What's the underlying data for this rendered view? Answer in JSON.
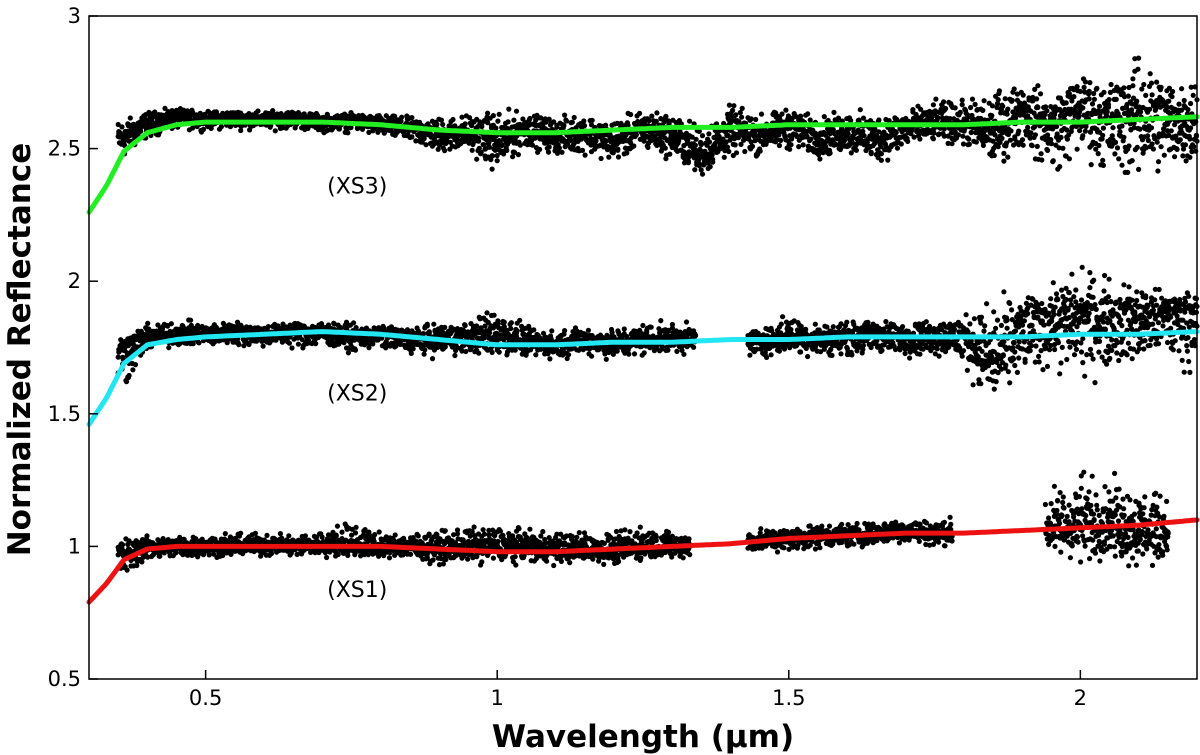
{
  "chart_data": {
    "type": "scatter",
    "title": "",
    "xlabel": "Wavelength (µm)",
    "ylabel": "Normalized Reflectance",
    "xlim": [
      0.3,
      2.2
    ],
    "ylim": [
      0.5,
      3.0
    ],
    "xticks": [
      0.5,
      1.0,
      1.5,
      2.0
    ],
    "xtick_labels": [
      "0.5",
      "1",
      "1.5",
      "2"
    ],
    "yticks": [
      0.5,
      1.0,
      1.5,
      2.0,
      2.5,
      3.0
    ],
    "ytick_labels": [
      "0.5",
      "1",
      "1.5",
      "2",
      "2.5",
      "3"
    ],
    "grid": false,
    "legend": "none",
    "annotations": [
      {
        "text": "(XS3)",
        "x": 0.76,
        "y": 2.33
      },
      {
        "text": "(XS2)",
        "x": 0.76,
        "y": 1.55
      },
      {
        "text": "(XS1)",
        "x": 0.76,
        "y": 0.81
      }
    ],
    "series": [
      {
        "label": "XS3",
        "line_color": "#22ee22",
        "marker_color": "#000000",
        "line": {
          "x": [
            0.3,
            0.33,
            0.36,
            0.4,
            0.45,
            0.5,
            0.6,
            0.7,
            0.8,
            0.9,
            1.0,
            1.1,
            1.2,
            1.3,
            1.4,
            1.5,
            1.6,
            1.7,
            1.8,
            1.9,
            2.0,
            2.1,
            2.2
          ],
          "y": [
            2.26,
            2.36,
            2.49,
            2.56,
            2.59,
            2.6,
            2.6,
            2.6,
            2.59,
            2.57,
            2.56,
            2.56,
            2.57,
            2.58,
            2.58,
            2.59,
            2.59,
            2.59,
            2.59,
            2.6,
            2.6,
            2.61,
            2.62
          ]
        },
        "segments": [
          [
            0.35,
            2.2
          ]
        ],
        "scatter_x": [
          0.36,
          0.4,
          0.45,
          0.5,
          0.55,
          0.6,
          0.65,
          0.7,
          0.75,
          0.8,
          0.85,
          0.9,
          0.95,
          1.0,
          1.05,
          1.1,
          1.15,
          1.2,
          1.25,
          1.3,
          1.35,
          1.4,
          1.45,
          1.5,
          1.55,
          1.6,
          1.65,
          1.7,
          1.75,
          1.8,
          1.85,
          1.9,
          1.95,
          2.0,
          2.05,
          2.1,
          2.15
        ],
        "scatter_y": [
          2.54,
          2.6,
          2.62,
          2.61,
          2.62,
          2.61,
          2.62,
          2.6,
          2.61,
          2.59,
          2.58,
          2.55,
          2.56,
          2.52,
          2.58,
          2.54,
          2.56,
          2.52,
          2.58,
          2.55,
          2.47,
          2.57,
          2.55,
          2.59,
          2.54,
          2.57,
          2.53,
          2.58,
          2.6,
          2.6,
          2.56,
          2.65,
          2.58,
          2.65,
          2.6,
          2.64,
          2.6
        ],
        "scatter_min": [
          2.44,
          2.52,
          2.56,
          2.56,
          2.56,
          2.56,
          2.56,
          2.55,
          2.55,
          2.53,
          2.5,
          2.46,
          2.47,
          2.38,
          2.48,
          2.46,
          2.46,
          2.44,
          2.46,
          2.44,
          2.37,
          2.44,
          2.45,
          2.47,
          2.44,
          2.45,
          2.42,
          2.46,
          2.5,
          2.48,
          2.39,
          2.46,
          2.35,
          2.42,
          2.35,
          2.28,
          2.38
        ],
        "scatter_max": [
          2.63,
          2.65,
          2.66,
          2.65,
          2.65,
          2.65,
          2.65,
          2.64,
          2.64,
          2.64,
          2.63,
          2.64,
          2.65,
          2.68,
          2.65,
          2.64,
          2.65,
          2.64,
          2.66,
          2.66,
          2.62,
          2.69,
          2.65,
          2.67,
          2.64,
          2.66,
          2.67,
          2.66,
          2.7,
          2.7,
          2.76,
          2.78,
          2.75,
          2.82,
          2.8,
          2.9,
          2.84
        ]
      },
      {
        "label": "XS2",
        "line_color": "#22e6f2",
        "marker_color": "#000000",
        "line": {
          "x": [
            0.3,
            0.33,
            0.36,
            0.4,
            0.45,
            0.5,
            0.6,
            0.7,
            0.8,
            0.9,
            1.0,
            1.1,
            1.2,
            1.3,
            1.4,
            1.5,
            1.6,
            1.7,
            1.8,
            1.9,
            2.0,
            2.1,
            2.2
          ],
          "y": [
            1.46,
            1.56,
            1.69,
            1.76,
            1.78,
            1.79,
            1.8,
            1.81,
            1.8,
            1.78,
            1.76,
            1.76,
            1.77,
            1.77,
            1.78,
            1.78,
            1.79,
            1.79,
            1.79,
            1.79,
            1.8,
            1.8,
            1.81
          ]
        },
        "segments": [
          [
            0.35,
            1.34
          ],
          [
            1.43,
            2.2
          ]
        ],
        "scatter_x": [
          0.36,
          0.4,
          0.45,
          0.5,
          0.55,
          0.6,
          0.65,
          0.7,
          0.75,
          0.8,
          0.85,
          0.9,
          0.95,
          1.0,
          1.05,
          1.1,
          1.15,
          1.2,
          1.25,
          1.3,
          1.45,
          1.5,
          1.55,
          1.6,
          1.65,
          1.7,
          1.75,
          1.8,
          1.85,
          1.9,
          1.95,
          2.0,
          2.05,
          2.1,
          2.15
        ],
        "scatter_y": [
          1.74,
          1.79,
          1.8,
          1.8,
          1.81,
          1.8,
          1.81,
          1.81,
          1.79,
          1.8,
          1.78,
          1.78,
          1.79,
          1.8,
          1.77,
          1.76,
          1.78,
          1.76,
          1.78,
          1.79,
          1.77,
          1.79,
          1.78,
          1.79,
          1.8,
          1.79,
          1.8,
          1.79,
          1.7,
          1.8,
          1.85,
          1.86,
          1.85,
          1.86,
          1.88
        ],
        "scatter_min": [
          1.54,
          1.72,
          1.74,
          1.74,
          1.74,
          1.74,
          1.73,
          1.73,
          1.72,
          1.73,
          1.71,
          1.7,
          1.71,
          1.68,
          1.7,
          1.69,
          1.71,
          1.69,
          1.7,
          1.71,
          1.7,
          1.71,
          1.7,
          1.7,
          1.7,
          1.7,
          1.69,
          1.65,
          1.48,
          1.62,
          1.62,
          1.58,
          1.6,
          1.6,
          1.62
        ],
        "scatter_max": [
          1.82,
          1.85,
          1.87,
          1.85,
          1.86,
          1.85,
          1.86,
          1.86,
          1.85,
          1.84,
          1.84,
          1.86,
          1.86,
          1.95,
          1.84,
          1.83,
          1.85,
          1.84,
          1.86,
          1.85,
          1.84,
          1.9,
          1.86,
          1.86,
          1.87,
          1.86,
          1.87,
          1.9,
          1.98,
          2.0,
          2.02,
          2.1,
          2.05,
          2.02,
          1.98
        ]
      },
      {
        "label": "XS1",
        "line_color": "#ee1111",
        "marker_color": "#000000",
        "line": {
          "x": [
            0.3,
            0.33,
            0.36,
            0.4,
            0.45,
            0.5,
            0.6,
            0.7,
            0.8,
            0.9,
            1.0,
            1.1,
            1.2,
            1.3,
            1.4,
            1.5,
            1.6,
            1.7,
            1.8,
            1.9,
            2.0,
            2.1,
            2.2
          ],
          "y": [
            0.79,
            0.86,
            0.95,
            0.99,
            1.0,
            1.0,
            1.0,
            1.0,
            1.0,
            0.99,
            0.98,
            0.98,
            0.99,
            1.0,
            1.01,
            1.03,
            1.04,
            1.05,
            1.05,
            1.06,
            1.07,
            1.08,
            1.1
          ]
        },
        "segments": [
          [
            0.35,
            1.33
          ],
          [
            1.43,
            1.78
          ],
          [
            1.94,
            2.15
          ]
        ],
        "scatter_x": [
          0.36,
          0.4,
          0.45,
          0.5,
          0.55,
          0.6,
          0.65,
          0.7,
          0.75,
          0.8,
          0.85,
          0.9,
          0.95,
          1.0,
          1.05,
          1.1,
          1.15,
          1.2,
          1.25,
          1.3,
          1.45,
          1.5,
          1.55,
          1.6,
          1.65,
          1.7,
          1.75,
          1.95,
          2.0,
          2.05,
          2.1,
          2.15
        ],
        "scatter_y": [
          0.97,
          1.0,
          1.0,
          1.0,
          1.0,
          1.01,
          1.0,
          1.01,
          1.0,
          1.0,
          1.0,
          0.99,
          0.99,
          1.0,
          1.0,
          0.99,
          0.99,
          0.98,
          1.0,
          1.0,
          1.02,
          1.03,
          1.04,
          1.04,
          1.05,
          1.06,
          1.05,
          1.07,
          1.08,
          1.09,
          1.06,
          1.05
        ],
        "scatter_min": [
          0.84,
          0.94,
          0.94,
          0.95,
          0.95,
          0.95,
          0.95,
          0.95,
          0.95,
          0.95,
          0.94,
          0.92,
          0.93,
          0.92,
          0.93,
          0.92,
          0.93,
          0.92,
          0.94,
          0.94,
          0.96,
          0.97,
          0.98,
          0.98,
          0.99,
          1.0,
          0.99,
          0.93,
          0.9,
          0.93,
          0.87,
          0.92
        ],
        "scatter_max": [
          1.05,
          1.05,
          1.05,
          1.06,
          1.06,
          1.06,
          1.06,
          1.07,
          1.13,
          1.06,
          1.07,
          1.08,
          1.1,
          1.1,
          1.08,
          1.07,
          1.08,
          1.07,
          1.12,
          1.07,
          1.08,
          1.09,
          1.1,
          1.1,
          1.11,
          1.12,
          1.11,
          1.25,
          1.35,
          1.3,
          1.28,
          1.22
        ]
      }
    ]
  }
}
